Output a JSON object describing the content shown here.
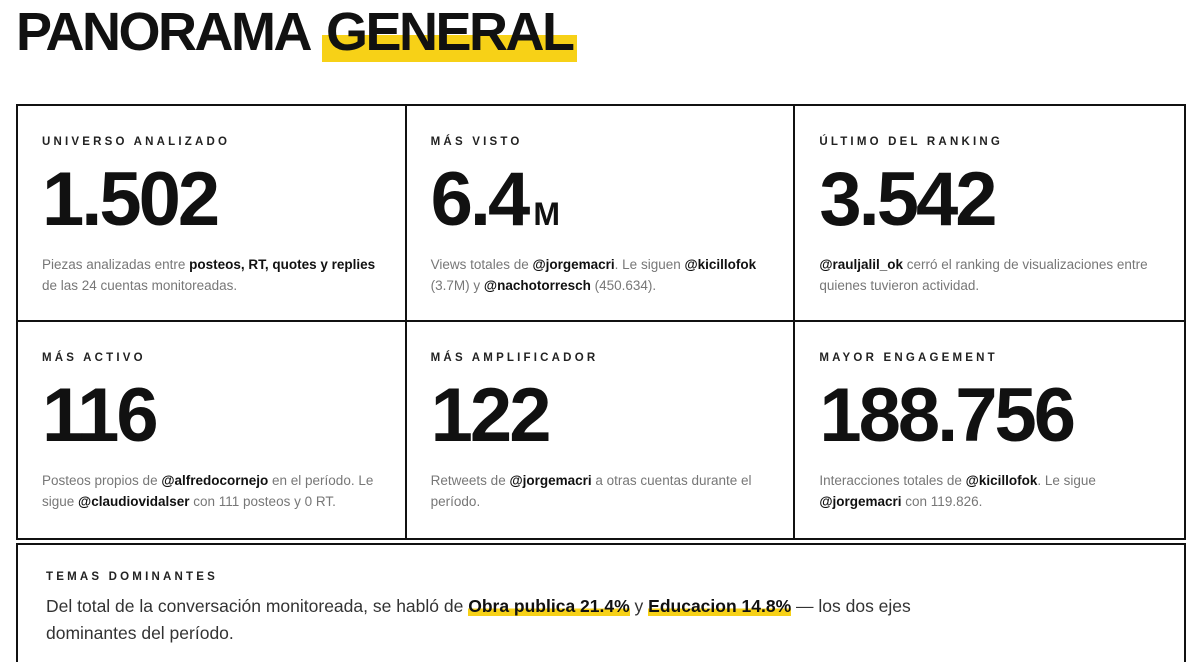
{
  "header": {
    "title": [
      {
        "text": "PANORAMA",
        "style": "plain"
      },
      {
        "text": "GENERAL",
        "style": "highlight"
      }
    ]
  },
  "cards": [
    {
      "label": "UNIVERSO ANALIZADO",
      "value": "1.502",
      "description": [
        {
          "text": "Piezas analizadas entre ",
          "style": "plain"
        },
        {
          "text": "posteos, RT, quotes y replies",
          "style": "bold"
        },
        {
          "text": " de las 24 cuentas monitoreadas.",
          "style": "plain"
        }
      ]
    },
    {
      "label": "MÁS VISTO",
      "value": "6.4",
      "unit": "M",
      "description": [
        {
          "text": "Views totales de ",
          "style": "plain"
        },
        {
          "text": "@jorgemacri",
          "style": "bold"
        },
        {
          "text": ". Le siguen ",
          "style": "plain"
        },
        {
          "text": "@kicillofok",
          "style": "bold"
        },
        {
          "text": " (3.7M) y ",
          "style": "plain"
        },
        {
          "text": "@nachotorresch",
          "style": "bold"
        },
        {
          "text": " (450.634).",
          "style": "plain"
        }
      ]
    },
    {
      "label": "ÚLTIMO DEL RANKING",
      "value": "3.542",
      "description": [
        {
          "text": "@rauljalil_ok",
          "style": "bold"
        },
        {
          "text": " cerró el ranking de visualizaciones entre quienes tuvieron actividad.",
          "style": "plain"
        }
      ]
    },
    {
      "label": "MÁS ACTIVO",
      "value": "116",
      "description": [
        {
          "text": "Posteos propios de ",
          "style": "plain"
        },
        {
          "text": "@alfredocornejo",
          "style": "bold"
        },
        {
          "text": " en el período. Le sigue ",
          "style": "plain"
        },
        {
          "text": "@claudiovidalser",
          "style": "bold"
        },
        {
          "text": " con 111 posteos y 0 RT.",
          "style": "plain"
        }
      ]
    },
    {
      "label": "MÁS AMPLIFICADOR",
      "value": "122",
      "description": [
        {
          "text": "Retweets de ",
          "style": "plain"
        },
        {
          "text": "@jorgemacri",
          "style": "bold"
        },
        {
          "text": " a otras cuentas durante el período.",
          "style": "plain"
        }
      ]
    },
    {
      "label": "MAYOR ENGAGEMENT",
      "value": "188.756",
      "description": [
        {
          "text": "Interacciones totales de ",
          "style": "plain"
        },
        {
          "text": "@kicillofok",
          "style": "bold"
        },
        {
          "text": ". Le sigue ",
          "style": "plain"
        },
        {
          "text": "@jorgemacri",
          "style": "bold"
        },
        {
          "text": " con 119.826.",
          "style": "plain"
        }
      ]
    }
  ],
  "topics": {
    "label": "TEMAS DOMINANTES",
    "text": [
      {
        "text": "Del total de la conversación monitoreada, se habló de ",
        "style": "plain"
      },
      {
        "text": "Obra publica 21.4%",
        "style": "highlight"
      },
      {
        "text": " y ",
        "style": "plain"
      },
      {
        "text": "Educacion 14.8%",
        "style": "highlight"
      },
      {
        "text": " — los dos ejes dominantes del período.",
        "style": "plain"
      }
    ]
  }
}
